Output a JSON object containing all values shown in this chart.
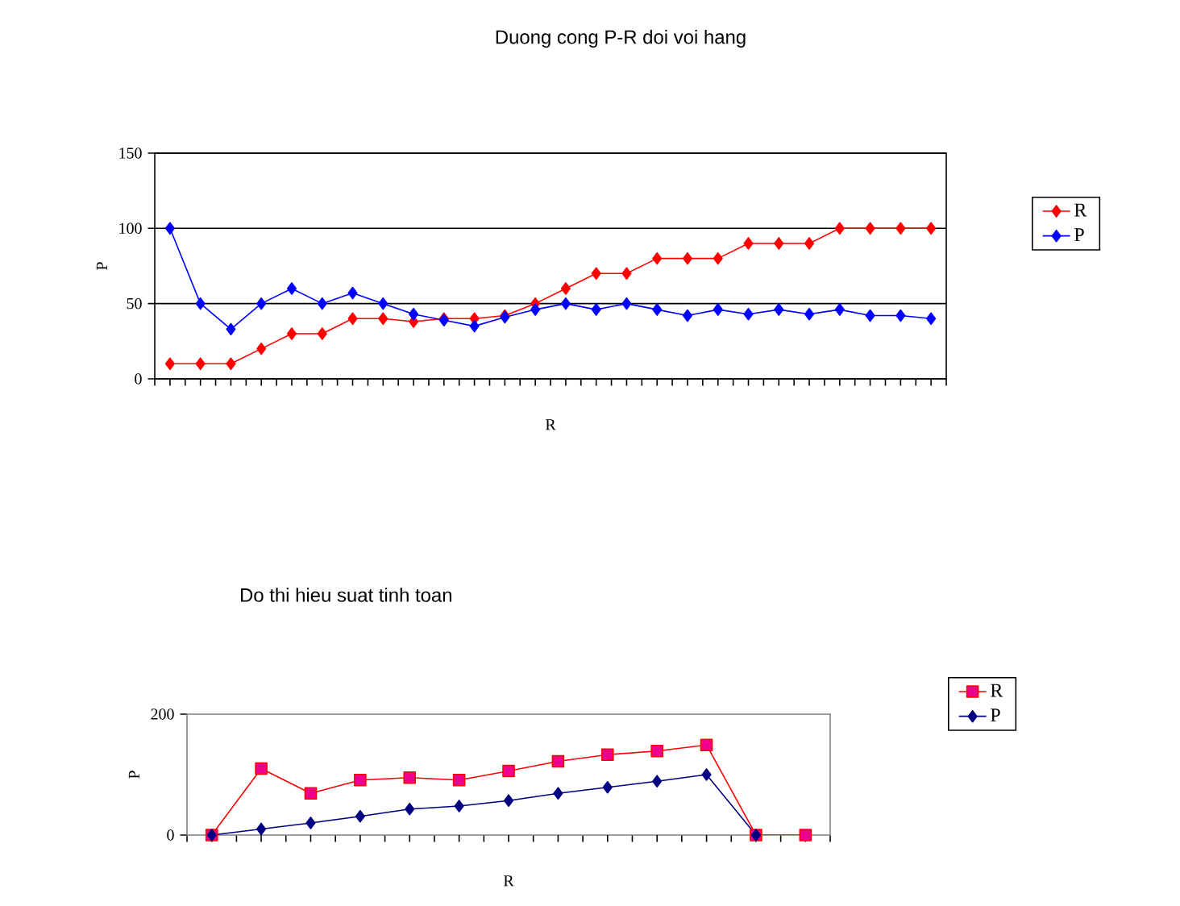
{
  "chart_data": [
    {
      "type": "line",
      "title": "Duong cong P-R doi voi hang",
      "xlabel": "R",
      "ylabel": "P",
      "categories": [
        null,
        null,
        null,
        null,
        null,
        null,
        null,
        null,
        null,
        null,
        null,
        null,
        null,
        null,
        null,
        null,
        null,
        null,
        null,
        null,
        null,
        null,
        null,
        null,
        null,
        null
      ],
      "series": [
        {
          "name": "R",
          "color": "#ff0000",
          "values": [
            10,
            10,
            10,
            20,
            30,
            30,
            40,
            40,
            38,
            40,
            40,
            42,
            50,
            60,
            70,
            70,
            80,
            80,
            80,
            90,
            90,
            90,
            100,
            100,
            100,
            100
          ]
        },
        {
          "name": "P",
          "color": "#0000ff",
          "values": [
            100,
            50,
            33,
            50,
            60,
            50,
            57,
            50,
            43,
            39,
            35,
            41,
            46,
            50,
            46,
            50,
            46,
            42,
            46,
            43,
            46,
            43,
            46,
            42,
            42,
            40
          ]
        }
      ],
      "ylim": [
        0,
        150
      ],
      "yticks": [
        0,
        50,
        100,
        150
      ],
      "grid": "y",
      "legend": "right",
      "marker": "diamond"
    },
    {
      "type": "line",
      "title": "Do thi hieu suat tinh toan",
      "xlabel": "R",
      "ylabel": "P",
      "categories": [
        null,
        null,
        null,
        null,
        null,
        null,
        null,
        null,
        null,
        null,
        null,
        null,
        null
      ],
      "series": [
        {
          "name": "R",
          "color": "#ff0000",
          "marker": "square",
          "values": [
            0,
            110,
            69,
            91,
            95,
            91,
            106,
            122,
            133,
            139,
            149,
            0,
            0
          ]
        },
        {
          "name": "P",
          "color": "#000080",
          "marker": "diamond",
          "values": [
            0,
            10,
            20,
            31,
            43,
            48,
            57,
            69,
            79,
            89,
            100,
            0,
            null
          ]
        }
      ],
      "ylim": [
        0,
        200
      ],
      "yticks": [
        0,
        200
      ],
      "grid": false,
      "legend": "right"
    }
  ]
}
